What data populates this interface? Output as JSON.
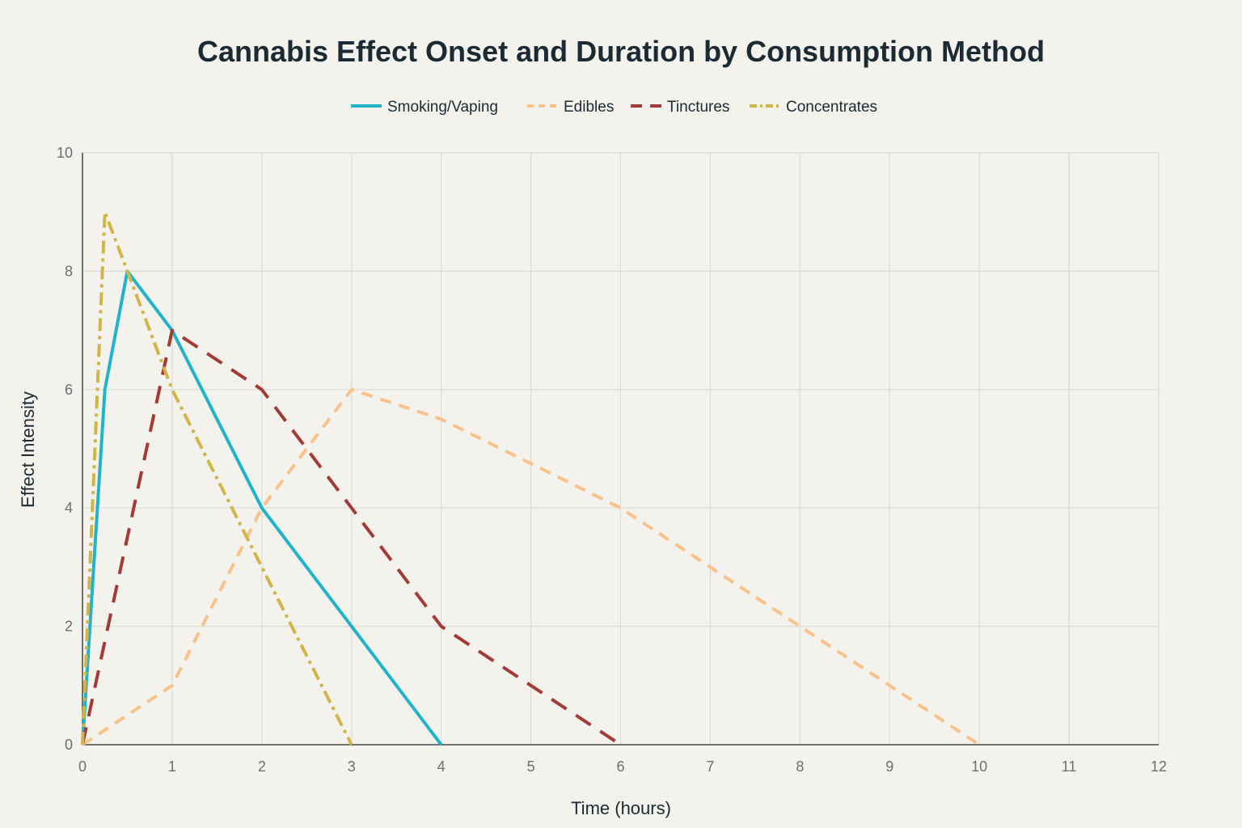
{
  "chart_data": {
    "type": "line",
    "title": "Cannabis Effect Onset and Duration by Consumption Method",
    "xlabel": "Time (hours)",
    "ylabel": "Effect Intensity",
    "xlim": [
      0,
      12
    ],
    "ylim": [
      0,
      10
    ],
    "x_ticks": [
      0,
      1,
      2,
      3,
      4,
      5,
      6,
      7,
      8,
      9,
      10,
      11,
      12
    ],
    "y_ticks": [
      0,
      2,
      4,
      6,
      8,
      10
    ],
    "grid": true,
    "legend_position": "top-center",
    "series": [
      {
        "name": "Smoking/Vaping",
        "color": "#21b3c9",
        "line_style": "solid",
        "x": [
          0,
          0.25,
          0.5,
          1,
          2,
          3,
          4
        ],
        "y": [
          0,
          6,
          8,
          7,
          4,
          2,
          0
        ]
      },
      {
        "name": "Edibles",
        "color": "#f8c28a",
        "line_style": "dash",
        "x": [
          0,
          1,
          2,
          3,
          4,
          5,
          6,
          7,
          8,
          9,
          10
        ],
        "y": [
          0,
          1,
          4,
          6,
          5.5,
          4.75,
          4,
          3,
          2,
          1,
          0
        ]
      },
      {
        "name": "Tinctures",
        "color": "#a33a35",
        "line_style": "longdash",
        "x": [
          0,
          1,
          2,
          3,
          4,
          5,
          6
        ],
        "y": [
          0,
          7,
          6,
          4,
          2,
          1,
          0
        ]
      },
      {
        "name": "Concentrates",
        "color": "#d0b547",
        "line_style": "dashdot",
        "x": [
          0,
          0.25,
          0.5,
          1,
          2,
          3
        ],
        "y": [
          0,
          9,
          8,
          6,
          3,
          0
        ]
      }
    ]
  }
}
